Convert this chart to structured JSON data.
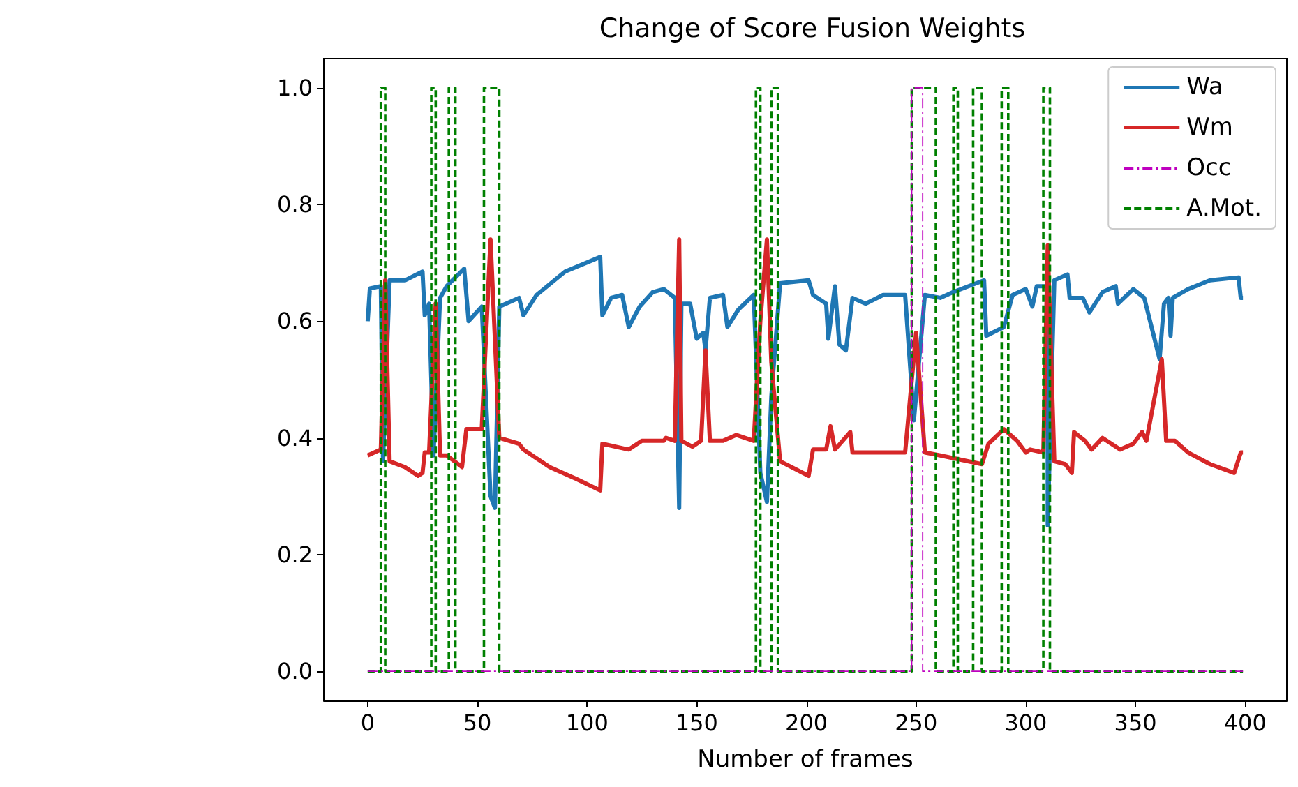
{
  "chart_data": {
    "type": "line",
    "title": "Change of Score Fusion Weights",
    "xlabel": "Number of frames",
    "xlim": [
      -20,
      419
    ],
    "xticks": [
      0,
      50,
      100,
      150,
      200,
      250,
      300,
      350,
      400
    ],
    "ylim": [
      -0.05,
      1.05
    ],
    "yticks": [
      {
        "value": 0,
        "label": "0.0"
      },
      {
        "value": 0.2,
        "label": "0.2"
      },
      {
        "value": 0.4,
        "label": "0.4"
      },
      {
        "value": 0.6,
        "label": "0.6"
      },
      {
        "value": 0.8,
        "label": "0.8"
      },
      {
        "value": 1,
        "label": "1.0"
      }
    ],
    "grid": false,
    "legend": "top right",
    "marker": "none",
    "series": [
      {
        "name": "Wa",
        "color": "#1f77b4",
        "line_style": "solid",
        "x": [
          0,
          1,
          6,
          7,
          10,
          17,
          25,
          26,
          28,
          30,
          33,
          36,
          44,
          46,
          52,
          56,
          58,
          60,
          69,
          71,
          77,
          90,
          106,
          107,
          111,
          116,
          119,
          124,
          130,
          135,
          140,
          142,
          143,
          147,
          150,
          153,
          154,
          156,
          162,
          164,
          169,
          176,
          179,
          182,
          184,
          188,
          201,
          203,
          209,
          210,
          213,
          215,
          218,
          221,
          227,
          235,
          245,
          249,
          254,
          261,
          267,
          281,
          282,
          290,
          294,
          300,
          303,
          305,
          310,
          310,
          313,
          319,
          320,
          326,
          329,
          335,
          341,
          342,
          349,
          354,
          361,
          363,
          365,
          366,
          367,
          374,
          384,
          397,
          398,
          399
        ],
        "values": [
          0.6,
          0.656,
          0.66,
          0.36,
          0.67,
          0.67,
          0.685,
          0.61,
          0.63,
          0.37,
          0.64,
          0.66,
          0.69,
          0.6,
          0.625,
          0.3,
          0.28,
          0.625,
          0.64,
          0.61,
          0.645,
          0.685,
          0.71,
          0.61,
          0.64,
          0.645,
          0.59,
          0.625,
          0.65,
          0.655,
          0.64,
          0.28,
          0.63,
          0.63,
          0.57,
          0.58,
          0.55,
          0.64,
          0.645,
          0.59,
          0.62,
          0.645,
          0.34,
          0.29,
          0.47,
          0.665,
          0.67,
          0.645,
          0.63,
          0.57,
          0.66,
          0.56,
          0.55,
          0.64,
          0.63,
          0.645,
          0.645,
          0.43,
          0.645,
          0.64,
          0.65,
          0.67,
          0.575,
          0.59,
          0.645,
          0.655,
          0.625,
          0.66,
          0.66,
          0.25,
          0.67,
          0.68,
          0.64,
          0.64,
          0.615,
          0.65,
          0.66,
          0.63,
          0.655,
          0.64,
          0.535,
          0.63,
          0.64,
          0.575,
          0.64,
          0.655,
          0.67,
          0.675,
          0.64,
          0.64
        ]
      },
      {
        "name": "Wm",
        "color": "#d62728",
        "line_style": "solid",
        "x": [
          0,
          6,
          8,
          10,
          17,
          23,
          25,
          26,
          28,
          31,
          33,
          36,
          43,
          45,
          52,
          56,
          60,
          69,
          71,
          83,
          95,
          106,
          107,
          119,
          125,
          135,
          136,
          140,
          142,
          143,
          148,
          152,
          154,
          156,
          162,
          168,
          176,
          179,
          182,
          184,
          188,
          201,
          203,
          209,
          211,
          213,
          220,
          221,
          227,
          245,
          250,
          254,
          261,
          280,
          283,
          290,
          296,
          300,
          302,
          308,
          310,
          313,
          318,
          321,
          322,
          327,
          330,
          335,
          343,
          349,
          353,
          355,
          362,
          364,
          368,
          374,
          384,
          395,
          398,
          399
        ],
        "values": [
          0.37,
          0.38,
          0.67,
          0.36,
          0.35,
          0.335,
          0.34,
          0.375,
          0.375,
          0.63,
          0.37,
          0.37,
          0.35,
          0.415,
          0.415,
          0.74,
          0.4,
          0.39,
          0.38,
          0.35,
          0.33,
          0.31,
          0.39,
          0.38,
          0.395,
          0.395,
          0.4,
          0.395,
          0.74,
          0.395,
          0.385,
          0.395,
          0.55,
          0.395,
          0.395,
          0.405,
          0.395,
          0.6,
          0.74,
          0.53,
          0.36,
          0.335,
          0.38,
          0.38,
          0.42,
          0.38,
          0.41,
          0.375,
          0.375,
          0.375,
          0.58,
          0.375,
          0.37,
          0.355,
          0.39,
          0.415,
          0.395,
          0.375,
          0.38,
          0.375,
          0.73,
          0.36,
          0.355,
          0.34,
          0.41,
          0.395,
          0.38,
          0.4,
          0.38,
          0.39,
          0.41,
          0.395,
          0.535,
          0.395,
          0.395,
          0.375,
          0.355,
          0.34,
          0.375,
          0.375
        ]
      },
      {
        "name": "Occ",
        "color": "#bf00bf",
        "line_style": "dashdot",
        "x": [
          0,
          248,
          248,
          253,
          253,
          399
        ],
        "values": [
          0,
          0,
          1,
          1,
          0,
          0
        ]
      },
      {
        "name": "A.Mot.",
        "color": "#008000",
        "line_style": "dashed",
        "x": [
          0,
          6,
          6,
          8,
          8,
          29,
          29,
          31,
          31,
          37,
          37,
          40,
          40,
          53,
          53,
          60,
          60,
          177,
          177,
          179,
          179,
          184,
          184,
          187,
          187,
          248,
          248,
          259,
          259,
          267,
          267,
          269,
          269,
          276,
          276,
          280,
          280,
          289,
          289,
          292,
          292,
          308,
          308,
          311,
          311,
          399
        ],
        "values": [
          0,
          0,
          1,
          1,
          0,
          0,
          1,
          1,
          0,
          0,
          1,
          1,
          0,
          0,
          1,
          1,
          0,
          0,
          1,
          1,
          0,
          0,
          1,
          1,
          0,
          0,
          1,
          1,
          0,
          0,
          1,
          1,
          0,
          0,
          1,
          1,
          0,
          0,
          1,
          1,
          0,
          0,
          1,
          1,
          0,
          0
        ]
      }
    ]
  }
}
